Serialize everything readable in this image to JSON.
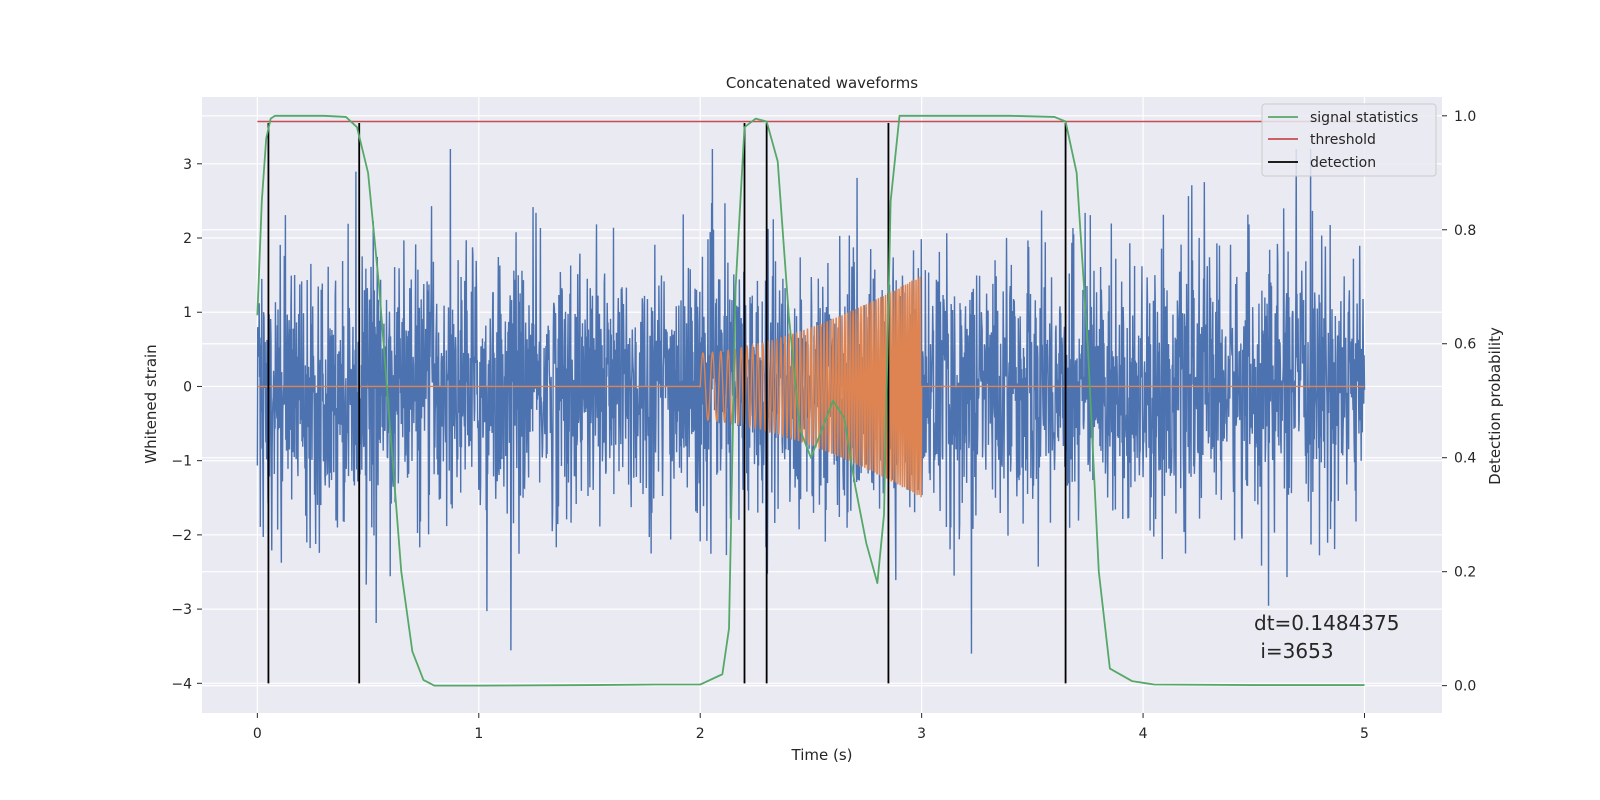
{
  "chart_data": {
    "type": "line",
    "title": "Concatenated waveforms",
    "xlabel": "Time (s)",
    "ylabel_left": "Whitened strain",
    "ylabel_right": "Detection probability",
    "xlim": [
      -0.25,
      5.35
    ],
    "ylim_left": [
      -4.4,
      3.9
    ],
    "ylim_right": [
      -0.048,
      1.033
    ],
    "x_ticks": [
      0,
      1,
      2,
      3,
      4,
      5
    ],
    "y_left_ticks": [
      -4,
      -3,
      -2,
      -1,
      0,
      1,
      2,
      3
    ],
    "y_right_ticks": [
      0.0,
      0.2,
      0.4,
      0.6,
      0.8,
      1.0
    ],
    "grid": true,
    "legend_position": "top-right",
    "colors": {
      "strain": "#4c72b0",
      "injection": "#dd8452",
      "signal_statistics": "#55a868",
      "threshold": "#c44e52",
      "detection": "#000000",
      "plot_background": "#eaeaf2"
    },
    "series": [
      {
        "role": "strain",
        "axis": "left",
        "x_range": [
          0,
          5
        ],
        "envelope": "dense noise, mostly within ±1.5, peaks to about ±3.2"
      },
      {
        "role": "injection",
        "axis": "left",
        "x_range": [
          0,
          5
        ],
        "nonzero_interval": [
          2.0,
          3.0
        ],
        "amplitude_start": 0.45,
        "amplitude_end": 1.5
      },
      {
        "name": "signal statistics",
        "axis": "right",
        "x": [
          0.0,
          0.02,
          0.04,
          0.06,
          0.08,
          0.1,
          0.2,
          0.3,
          0.4,
          0.45,
          0.5,
          0.55,
          0.6,
          0.65,
          0.7,
          0.75,
          0.8,
          1.0,
          1.5,
          1.8,
          2.0,
          2.1,
          2.13,
          2.16,
          2.2,
          2.25,
          2.3,
          2.35,
          2.4,
          2.45,
          2.5,
          2.55,
          2.6,
          2.65,
          2.7,
          2.75,
          2.8,
          2.83,
          2.86,
          2.9,
          3.0,
          3.4,
          3.6,
          3.65,
          3.7,
          3.75,
          3.8,
          3.85,
          3.95,
          4.05,
          4.5,
          5.0
        ],
        "y": [
          0.65,
          0.85,
          0.96,
          0.995,
          1.0,
          1.0,
          1.0,
          1.0,
          0.998,
          0.98,
          0.9,
          0.7,
          0.45,
          0.2,
          0.06,
          0.01,
          0.0,
          0.0,
          0.001,
          0.002,
          0.002,
          0.02,
          0.1,
          0.7,
          0.98,
          0.995,
          0.99,
          0.92,
          0.65,
          0.45,
          0.4,
          0.45,
          0.5,
          0.47,
          0.35,
          0.25,
          0.18,
          0.3,
          0.85,
          1.0,
          1.0,
          1.0,
          0.998,
          0.99,
          0.9,
          0.6,
          0.2,
          0.03,
          0.008,
          0.002,
          0.001,
          0.001
        ]
      },
      {
        "name": "threshold",
        "axis": "right",
        "x": [
          0.0,
          5.0
        ],
        "y": [
          0.99,
          0.99
        ]
      }
    ],
    "detections": {
      "name": "detection",
      "x": [
        0.05,
        0.46,
        2.2,
        2.3,
        2.85,
        3.65
      ],
      "y_range_left": [
        -4.0,
        3.55
      ]
    },
    "legend": [
      "signal statistics",
      "threshold",
      "detection"
    ],
    "annotation": {
      "line1": "dt=0.1484375",
      "line2": " i=3653"
    }
  }
}
